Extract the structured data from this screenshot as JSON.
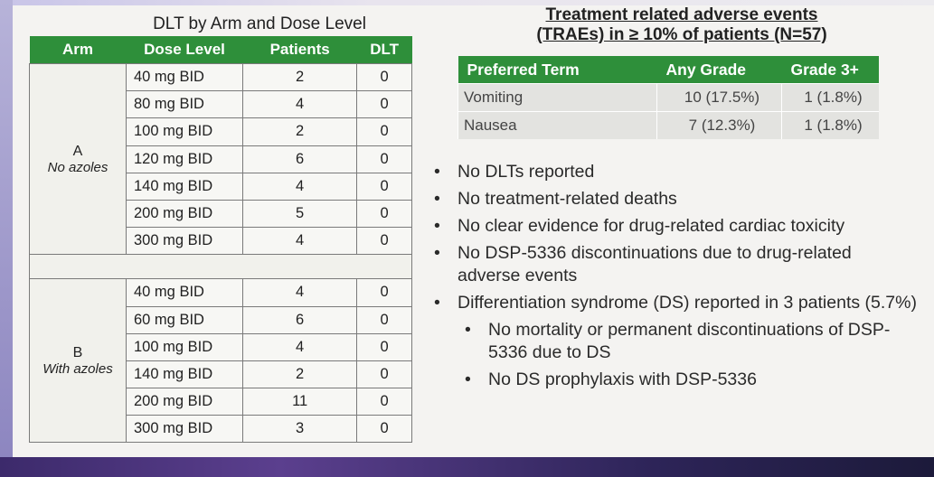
{
  "dlt": {
    "title": "DLT by Arm and Dose Level",
    "headers": [
      "Arm",
      "Dose Level",
      "Patients",
      "DLT"
    ],
    "arms": [
      {
        "letter": "A",
        "desc": "No azoles",
        "rows": [
          {
            "dose": "40 mg BID",
            "patients": "2",
            "dlt": "0"
          },
          {
            "dose": "80 mg BID",
            "patients": "4",
            "dlt": "0"
          },
          {
            "dose": "100 mg BID",
            "patients": "2",
            "dlt": "0"
          },
          {
            "dose": "120 mg BID",
            "patients": "6",
            "dlt": "0"
          },
          {
            "dose": "140 mg BID",
            "patients": "4",
            "dlt": "0"
          },
          {
            "dose": "200 mg BID",
            "patients": "5",
            "dlt": "0"
          },
          {
            "dose": "300 mg BID",
            "patients": "4",
            "dlt": "0"
          }
        ]
      },
      {
        "letter": "B",
        "desc": "With azoles",
        "rows": [
          {
            "dose": "40 mg BID",
            "patients": "4",
            "dlt": "0"
          },
          {
            "dose": "60 mg BID",
            "patients": "6",
            "dlt": "0"
          },
          {
            "dose": "100 mg BID",
            "patients": "4",
            "dlt": "0"
          },
          {
            "dose": "140 mg BID",
            "patients": "2",
            "dlt": "0"
          },
          {
            "dose": "200 mg BID",
            "patients": "11",
            "dlt": "0"
          },
          {
            "dose": "300 mg BID",
            "patients": "3",
            "dlt": "0"
          }
        ]
      }
    ]
  },
  "trae": {
    "title_line1": "Treatment related adverse events",
    "title_line2": "(TRAEs) in ≥ 10% of patients (N=57)",
    "headers": [
      "Preferred Term",
      "Any Grade",
      "Grade 3+"
    ],
    "rows": [
      {
        "term": "Vomiting",
        "any": "10 (17.5%)",
        "grade3": "1 (1.8%)"
      },
      {
        "term": "Nausea",
        "any": "7 (12.3%)",
        "grade3": "1 (1.8%)"
      }
    ]
  },
  "bullets": [
    {
      "text": "No DLTs reported",
      "sub": false
    },
    {
      "text": "No treatment-related deaths",
      "sub": false
    },
    {
      "text": "No clear evidence for drug-related cardiac toxicity",
      "sub": false
    },
    {
      "text": "No DSP-5336 discontinuations due to drug-related adverse events",
      "sub": false
    },
    {
      "text": "Differentiation syndrome (DS) reported in 3 patients (5.7%)",
      "sub": false
    },
    {
      "text": "No mortality or permanent discontinuations of DSP-5336 due to DS",
      "sub": true
    },
    {
      "text": "No DS prophylaxis with DSP-5336",
      "sub": true
    }
  ]
}
